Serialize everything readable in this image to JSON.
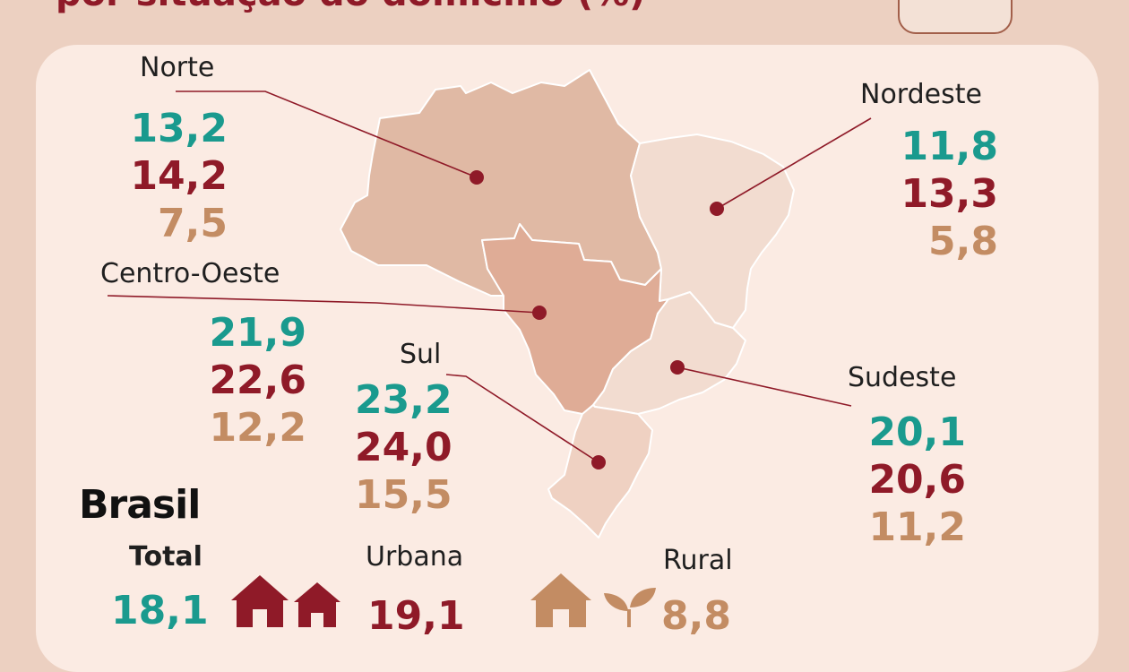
{
  "title": "por situação do domicílio (%)",
  "colors": {
    "total": "#1a9a8e",
    "urbana": "#8f1a28",
    "rural": "#c38c63",
    "leader": "#8f1a28"
  },
  "regions": [
    {
      "id": "norte",
      "name": "Norte",
      "total": "13,2",
      "urbana": "14,2",
      "rural": "7,5"
    },
    {
      "id": "nordeste",
      "name": "Nordeste",
      "total": "11,8",
      "urbana": "13,3",
      "rural": "5,8"
    },
    {
      "id": "centro_oeste",
      "name": "Centro-Oeste",
      "total": "21,9",
      "urbana": "22,6",
      "rural": "12,2"
    },
    {
      "id": "sul",
      "name": "Sul",
      "total": "23,2",
      "urbana": "24,0",
      "rural": "15,5"
    },
    {
      "id": "sudeste",
      "name": "Sudeste",
      "total": "20,1",
      "urbana": "20,6",
      "rural": "11,2"
    }
  ],
  "brasil": {
    "label": "Brasil",
    "total_label": "Total",
    "total_value": "18,1",
    "urbana_label": "Urbana",
    "urbana_value": "19,1",
    "rural_label": "Rural",
    "rural_value": "8,8"
  },
  "icons": {
    "urbana": "two-houses-icon",
    "rural": "house-and-plant-icon"
  }
}
